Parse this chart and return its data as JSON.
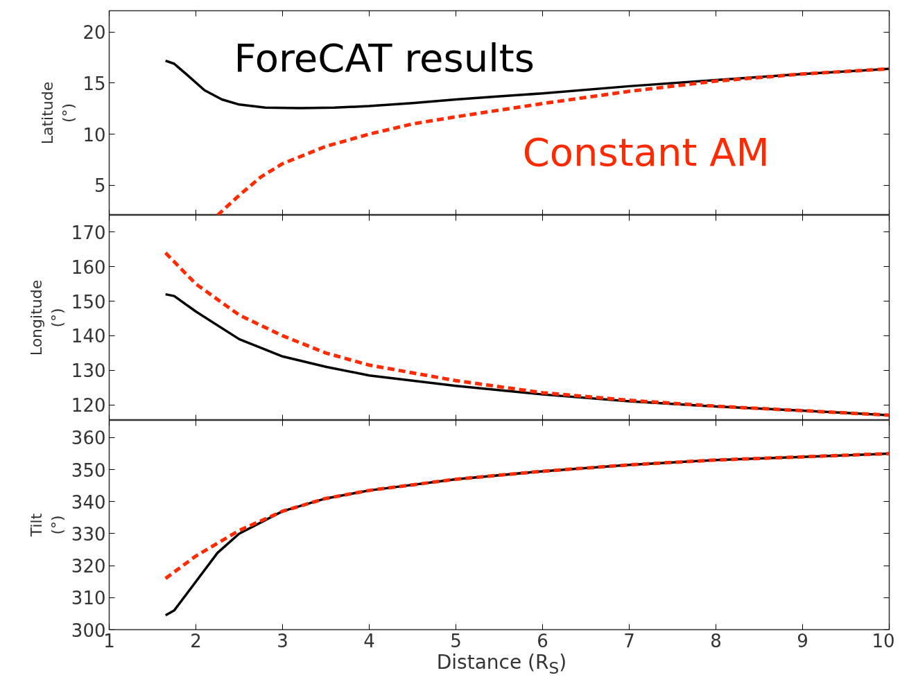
{
  "chart_data": [
    {
      "type": "line",
      "ylabel": "Latitude\n(°)",
      "xlim": [
        1,
        10
      ],
      "ylim": [
        2.05,
        22.1
      ],
      "xticks": [
        1,
        2,
        3,
        4,
        5,
        6,
        7,
        8,
        9,
        10
      ],
      "yticks": [
        5,
        10,
        15,
        20
      ],
      "tick_labels": "y",
      "grid": false,
      "legend": "top",
      "series": [
        {
          "name": "ForeCAT results",
          "color": "#000000",
          "line_style": "solid",
          "x": [
            1.65,
            1.75,
            1.9,
            2.1,
            2.3,
            2.5,
            2.8,
            3.2,
            3.6,
            4,
            4.5,
            5,
            5.5,
            6,
            7,
            8,
            9,
            10
          ],
          "values": [
            17.2,
            16.9,
            15.8,
            14.3,
            13.4,
            12.9,
            12.6,
            12.55,
            12.6,
            12.75,
            13.05,
            13.4,
            13.7,
            14.0,
            14.7,
            15.3,
            15.9,
            16.4
          ]
        },
        {
          "name": "Constant AM",
          "color": "#ff2a00",
          "line_style": "dashed",
          "x": [
            2.25,
            2.5,
            2.75,
            3,
            3.5,
            4,
            4.5,
            5,
            6,
            7,
            8,
            9,
            10
          ],
          "values": [
            2.05,
            4.0,
            5.8,
            7.1,
            8.8,
            10.0,
            11.0,
            11.7,
            13.0,
            14.2,
            15.2,
            15.9,
            16.4
          ]
        }
      ]
    },
    {
      "type": "line",
      "ylabel": "Longitude\n(°)",
      "xlim": [
        1,
        10
      ],
      "ylim": [
        115.5,
        174.9
      ],
      "xticks": [
        1,
        2,
        3,
        4,
        5,
        6,
        7,
        8,
        9,
        10
      ],
      "yticks": [
        120,
        130,
        140,
        150,
        160,
        170
      ],
      "tick_labels": "y",
      "grid": false,
      "legend": false,
      "series": [
        {
          "color": "#000000",
          "line_style": "solid",
          "x": [
            1.65,
            1.75,
            2,
            2.5,
            3,
            3.5,
            4,
            5,
            6,
            7,
            8,
            9,
            10
          ],
          "values": [
            152,
            151.5,
            147,
            139,
            134,
            131,
            128.5,
            125.5,
            123,
            121,
            119.5,
            118.3,
            117
          ]
        },
        {
          "color": "#ff2a00",
          "line_style": "dashed",
          "x": [
            1.65,
            2,
            2.5,
            3,
            3.5,
            4,
            5,
            6,
            7,
            8,
            9,
            10
          ],
          "values": [
            164,
            155,
            146,
            140,
            135,
            131.5,
            127,
            123.5,
            121.3,
            119.6,
            118.3,
            117
          ]
        }
      ]
    },
    {
      "type": "line",
      "ylabel": "Tilt\n(°)",
      "xlabel": "Distance (R$_{S}$)",
      "xlim": [
        1,
        10
      ],
      "ylim": [
        300,
        365.4
      ],
      "xticks": [
        1,
        2,
        3,
        4,
        5,
        6,
        7,
        8,
        9,
        10
      ],
      "yticks": [
        300,
        310,
        320,
        330,
        340,
        350,
        360
      ],
      "grid": false,
      "legend": false,
      "series": [
        {
          "color": "#000000",
          "line_style": "solid",
          "x": [
            1.65,
            1.75,
            2,
            2.25,
            2.5,
            3,
            3.5,
            4,
            5,
            6,
            7,
            8,
            9,
            10
          ],
          "values": [
            304.5,
            306,
            315,
            324,
            330,
            337,
            341,
            343.5,
            347,
            349.5,
            351.5,
            353,
            354,
            355
          ]
        },
        {
          "color": "#ff2a00",
          "line_style": "dashed",
          "x": [
            1.65,
            2,
            2.5,
            3,
            3.5,
            4,
            5,
            6,
            7,
            8,
            9,
            10
          ],
          "values": [
            316,
            323,
            331,
            337,
            341,
            343.5,
            347,
            349.5,
            351.5,
            353,
            354,
            355
          ]
        }
      ]
    }
  ]
}
